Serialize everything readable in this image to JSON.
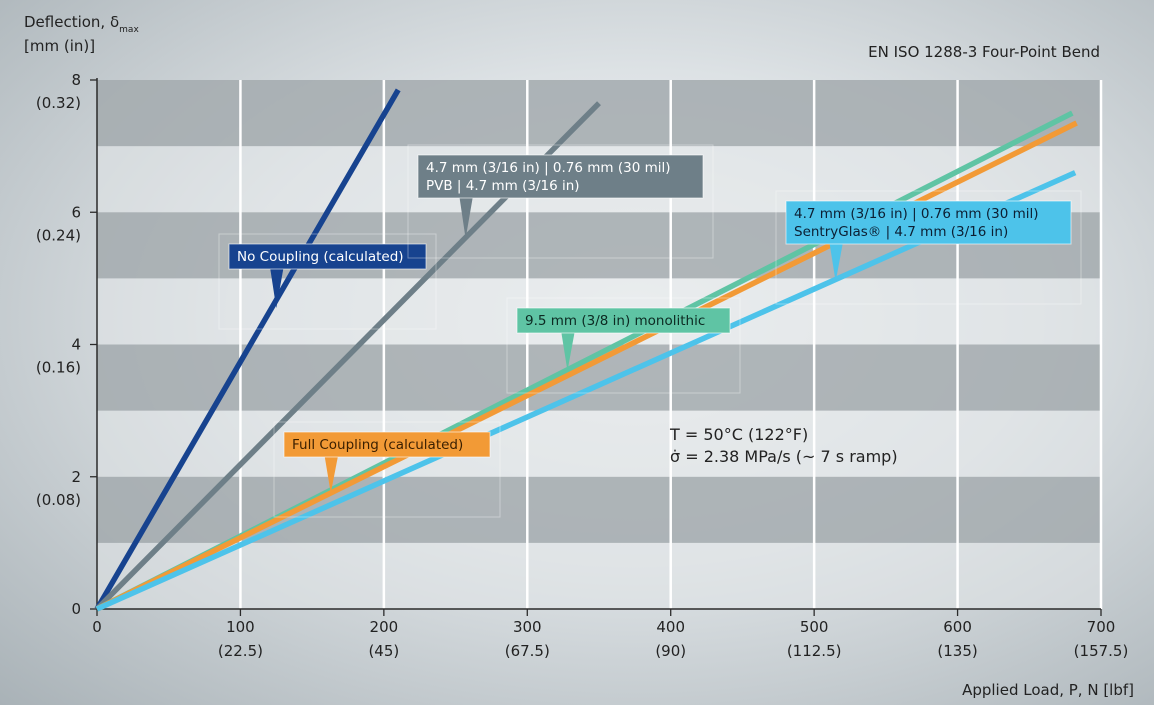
{
  "header": {
    "y_axis_title_line1": "Deflection, δ",
    "y_axis_title_sub": "max",
    "y_axis_title_line2": "[mm (in)]",
    "test_standard": "EN ISO 1288-3 Four-Point Bend",
    "x_axis_title": "Applied Load, P, N [lbf]"
  },
  "conditions": {
    "line1": "T = 50°C (122°F)",
    "line2": "σ̇ = 2.38 MPa/s (~ 7 s ramp)"
  },
  "colors": {
    "no_coupling": "#17438f",
    "pvb": "#6e7f88",
    "monolithic": "#5fc4a4",
    "full_coupling": "#f29a36",
    "sentryglas": "#4dc3ea",
    "band_dark": "#a3aaae",
    "band_light": "#e2e6e8"
  },
  "chart_data": {
    "type": "line",
    "title": "EN ISO 1288-3 Four-Point Bend",
    "xlabel": "Applied Load, P, N [lbf]",
    "ylabel": "Deflection, δmax [mm (in)]",
    "xlim": [
      0,
      700
    ],
    "ylim": [
      0,
      8
    ],
    "grid": true,
    "x_ticks": [
      {
        "value": 0,
        "label": "0",
        "sublabel": ""
      },
      {
        "value": 100,
        "label": "100",
        "sublabel": "(22.5)"
      },
      {
        "value": 200,
        "label": "200",
        "sublabel": "(45)"
      },
      {
        "value": 300,
        "label": "300",
        "sublabel": "(67.5)"
      },
      {
        "value": 400,
        "label": "400",
        "sublabel": "(90)"
      },
      {
        "value": 500,
        "label": "500",
        "sublabel": "(112.5)"
      },
      {
        "value": 600,
        "label": "600",
        "sublabel": "(135)"
      },
      {
        "value": 700,
        "label": "700",
        "sublabel": "(157.5)"
      }
    ],
    "y_ticks": [
      {
        "value": 0,
        "label": "0",
        "sublabel": ""
      },
      {
        "value": 2,
        "label": "2",
        "sublabel": "(0.08)"
      },
      {
        "value": 4,
        "label": "4",
        "sublabel": "(0.16)"
      },
      {
        "value": 6,
        "label": "6",
        "sublabel": "(0.24)"
      },
      {
        "value": 8,
        "label": "8",
        "sublabel": "(0.32)"
      }
    ],
    "series": [
      {
        "key": "no_coupling",
        "name": "No Coupling (calculated)",
        "x": [
          0,
          210
        ],
        "y": [
          0,
          7.85
        ]
      },
      {
        "key": "pvb",
        "name": "4.7 mm (3/16 in) | 0.76 mm (30 mil) PVB | 4.7 mm (3/16 in)",
        "x": [
          0,
          350
        ],
        "y": [
          0,
          7.65
        ]
      },
      {
        "key": "monolithic",
        "name": "9.5 mm (3/8 in) monolithic",
        "x": [
          0,
          680
        ],
        "y": [
          0,
          7.5
        ]
      },
      {
        "key": "full_coupling",
        "name": "Full Coupling (calculated)",
        "x": [
          0,
          683
        ],
        "y": [
          0,
          7.35
        ]
      },
      {
        "key": "sentryglas",
        "name": "4.7 mm (3/16 in) | 0.76 mm (30 mil) SentryGlas® | 4.7 mm (3/16 in)",
        "x": [
          0,
          682
        ],
        "y": [
          0,
          6.6
        ]
      }
    ],
    "annotations": [
      {
        "key": "no_coupling",
        "lines": [
          "No Coupling (calculated)"
        ],
        "pointer_x": 125,
        "pointer_y": 4.55
      },
      {
        "key": "pvb",
        "lines": [
          "4.7 mm (3/16 in) | 0.76 mm (30 mil)",
          "PVB | 4.7 mm (3/16 in)"
        ],
        "pointer_x": 257,
        "pointer_y": 5.6
      },
      {
        "key": "sentryglas",
        "lines": [
          "4.7 mm (3/16 in) | 0.76 mm (30 mil)",
          "SentryGlas® | 4.7 mm (3/16 in)"
        ],
        "pointer_x": 515,
        "pointer_y": 4.95
      },
      {
        "key": "monolithic",
        "lines": [
          "9.5 mm (3/8 in) monolithic"
        ],
        "pointer_x": 328,
        "pointer_y": 3.6
      },
      {
        "key": "full_coupling",
        "lines": [
          "Full Coupling (calculated)"
        ],
        "pointer_x": 163,
        "pointer_y": 1.75
      }
    ]
  }
}
